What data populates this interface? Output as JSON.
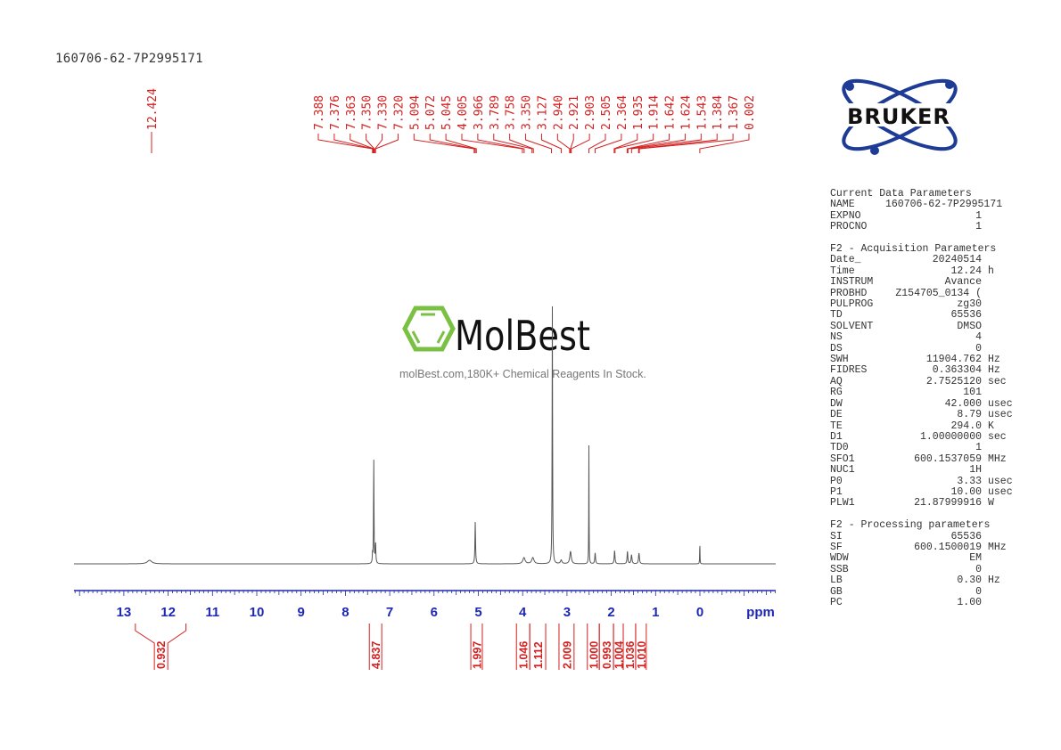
{
  "title": "160706-62-7P2995171",
  "logo": {
    "text": "BRUKER",
    "color": "#1e3c96"
  },
  "watermark": {
    "brand": "MolBest",
    "tagline": "molBest.com,180K+ Chemical Reagents In Stock.",
    "color": "#7ac143"
  },
  "parameters": [
    {
      "heading": "Current Data Parameters",
      "rows": [
        {
          "k": "NAME",
          "v": "160706-62-7P2995171",
          "u": ""
        },
        {
          "k": "EXPNO",
          "v": "1",
          "u": ""
        },
        {
          "k": "PROCNO",
          "v": "1",
          "u": ""
        }
      ]
    },
    {
      "heading": "F2 - Acquisition Parameters",
      "rows": [
        {
          "k": "Date_",
          "v": "20240514",
          "u": ""
        },
        {
          "k": "Time",
          "v": "12.24",
          "u": "h"
        },
        {
          "k": "INSTRUM",
          "v": "Avance",
          "u": ""
        },
        {
          "k": "PROBHD",
          "v": "Z154705_0134 (",
          "u": ""
        },
        {
          "k": "PULPROG",
          "v": "zg30",
          "u": ""
        },
        {
          "k": "TD",
          "v": "65536",
          "u": ""
        },
        {
          "k": "SOLVENT",
          "v": "DMSO",
          "u": ""
        },
        {
          "k": "NS",
          "v": "4",
          "u": ""
        },
        {
          "k": "DS",
          "v": "0",
          "u": ""
        },
        {
          "k": "SWH",
          "v": "11904.762",
          "u": "Hz"
        },
        {
          "k": "FIDRES",
          "v": "0.363304",
          "u": "Hz"
        },
        {
          "k": "AQ",
          "v": "2.7525120",
          "u": "sec"
        },
        {
          "k": "RG",
          "v": "101",
          "u": ""
        },
        {
          "k": "DW",
          "v": "42.000",
          "u": "usec"
        },
        {
          "k": "DE",
          "v": "8.79",
          "u": "usec"
        },
        {
          "k": "TE",
          "v": "294.0",
          "u": "K"
        },
        {
          "k": "D1",
          "v": "1.00000000",
          "u": "sec"
        },
        {
          "k": "TD0",
          "v": "1",
          "u": ""
        },
        {
          "k": "SFO1",
          "v": "600.1537059",
          "u": "MHz"
        },
        {
          "k": "NUC1",
          "v": "1H",
          "u": ""
        },
        {
          "k": "P0",
          "v": "3.33",
          "u": "usec"
        },
        {
          "k": "P1",
          "v": "10.00",
          "u": "usec"
        },
        {
          "k": "PLW1",
          "v": "21.87999916",
          "u": "W"
        }
      ]
    },
    {
      "heading": "F2 - Processing parameters",
      "rows": [
        {
          "k": "SI",
          "v": "65536",
          "u": ""
        },
        {
          "k": "SF",
          "v": "600.1500019",
          "u": "MHz"
        },
        {
          "k": "WDW",
          "v": "EM",
          "u": ""
        },
        {
          "k": "SSB",
          "v": "0",
          "u": ""
        },
        {
          "k": "LB",
          "v": "0.30",
          "u": "Hz"
        },
        {
          "k": "GB",
          "v": "0",
          "u": ""
        },
        {
          "k": "PC",
          "v": "1.00",
          "u": ""
        }
      ]
    }
  ],
  "chart_data": {
    "type": "line",
    "xlabel": "ppm",
    "xlim": [
      14.1,
      -1.7
    ],
    "x_reversed": true,
    "grid": false,
    "x_ticks": [
      "13",
      "12",
      "11",
      "10",
      "9",
      "8",
      "7",
      "6",
      "5",
      "4",
      "3",
      "2",
      "1",
      "0"
    ],
    "colors": {
      "spectrum": "#555555",
      "annotations": "#d42020",
      "axis": "#1e28b4"
    },
    "peak_labels": [
      "12.424",
      "7.388",
      "7.376",
      "7.363",
      "7.350",
      "7.330",
      "7.320",
      "5.094",
      "5.072",
      "5.045",
      "4.005",
      "3.966",
      "3.789",
      "3.758",
      "3.350",
      "3.127",
      "2.940",
      "2.921",
      "2.903",
      "2.505",
      "2.364",
      "1.935",
      "1.914",
      "1.642",
      "1.624",
      "1.543",
      "1.384",
      "1.367",
      "0.002"
    ],
    "signals": [
      {
        "ppm": 12.42,
        "intensity": 1.4,
        "width": 0.06
      },
      {
        "ppm": 7.388,
        "intensity": 3.5,
        "width": 0.006
      },
      {
        "ppm": 7.36,
        "intensity": 40.8,
        "width": 0.006
      },
      {
        "ppm": 7.32,
        "intensity": 7.6,
        "width": 0.008
      },
      {
        "ppm": 5.07,
        "intensity": 16.3,
        "width": 0.008
      },
      {
        "ppm": 3.97,
        "intensity": 2.4,
        "width": 0.03
      },
      {
        "ppm": 3.77,
        "intensity": 2.4,
        "width": 0.03
      },
      {
        "ppm": 3.33,
        "intensity": 100,
        "width": 0.006
      },
      {
        "ppm": 3.13,
        "intensity": 1.4,
        "width": 0.02
      },
      {
        "ppm": 2.92,
        "intensity": 4.8,
        "width": 0.02
      },
      {
        "ppm": 2.505,
        "intensity": 46,
        "width": 0.004
      },
      {
        "ppm": 2.364,
        "intensity": 4.2,
        "width": 0.01
      },
      {
        "ppm": 1.925,
        "intensity": 5.2,
        "width": 0.01
      },
      {
        "ppm": 1.635,
        "intensity": 4.8,
        "width": 0.01
      },
      {
        "ppm": 1.543,
        "intensity": 3.5,
        "width": 0.012
      },
      {
        "ppm": 1.375,
        "intensity": 4.2,
        "width": 0.012
      },
      {
        "ppm": 0.002,
        "intensity": 8.7,
        "width": 0.004
      }
    ],
    "integrals": [
      {
        "value": "0.932",
        "from": 12.74,
        "to": 11.6
      },
      {
        "value": "4.837",
        "from": 7.46,
        "to": 7.18
      },
      {
        "value": "1.997",
        "from": 5.17,
        "to": 4.91
      },
      {
        "value": "1.046",
        "from": 4.14,
        "to": 3.84
      },
      {
        "value": "1.112",
        "from": 3.84,
        "to": 3.48
      },
      {
        "value": "2.009",
        "from": 3.18,
        "to": 2.84
      },
      {
        "value": "1.000",
        "from": 2.54,
        "to": 2.27
      },
      {
        "value": "0.993",
        "from": 2.27,
        "to": 1.95
      },
      {
        "value": "1.004",
        "from": 1.95,
        "to": 1.73
      },
      {
        "value": "1.036",
        "from": 1.73,
        "to": 1.45
      },
      {
        "value": "1.010",
        "from": 1.45,
        "to": 1.21
      }
    ]
  }
}
